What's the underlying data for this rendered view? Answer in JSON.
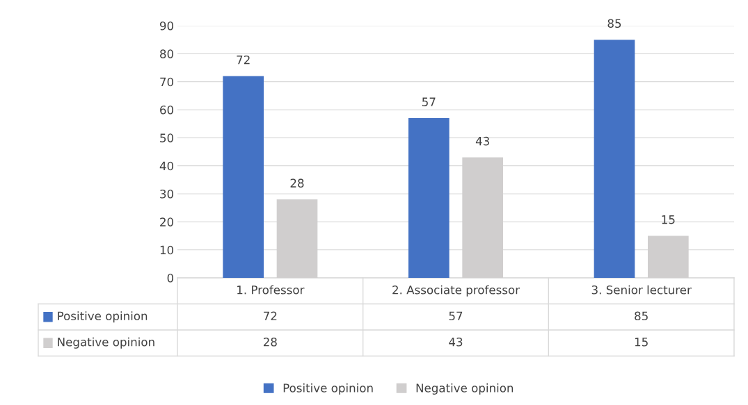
{
  "chart_data": {
    "type": "bar",
    "categories": [
      "1. Professor",
      "2. Associate professor",
      "3. Senior lecturer"
    ],
    "series": [
      {
        "name": "Positive opinion",
        "color": "#4472c4",
        "values": [
          72,
          57,
          85
        ],
        "value_labels": [
          "72",
          "57",
          "85"
        ]
      },
      {
        "name": "Negative opinion",
        "color": "#d0cece",
        "values": [
          28,
          43,
          15
        ],
        "value_labels": [
          "28",
          "43",
          "15"
        ]
      }
    ],
    "ylim": [
      0,
      90
    ],
    "yticks": [
      0,
      10,
      20,
      30,
      40,
      50,
      60,
      70,
      80,
      90
    ],
    "grid": "y",
    "data_labels": true,
    "annotations": [
      "72",
      "57",
      "85",
      "28",
      "43",
      "15"
    ],
    "legend": "bottom"
  }
}
